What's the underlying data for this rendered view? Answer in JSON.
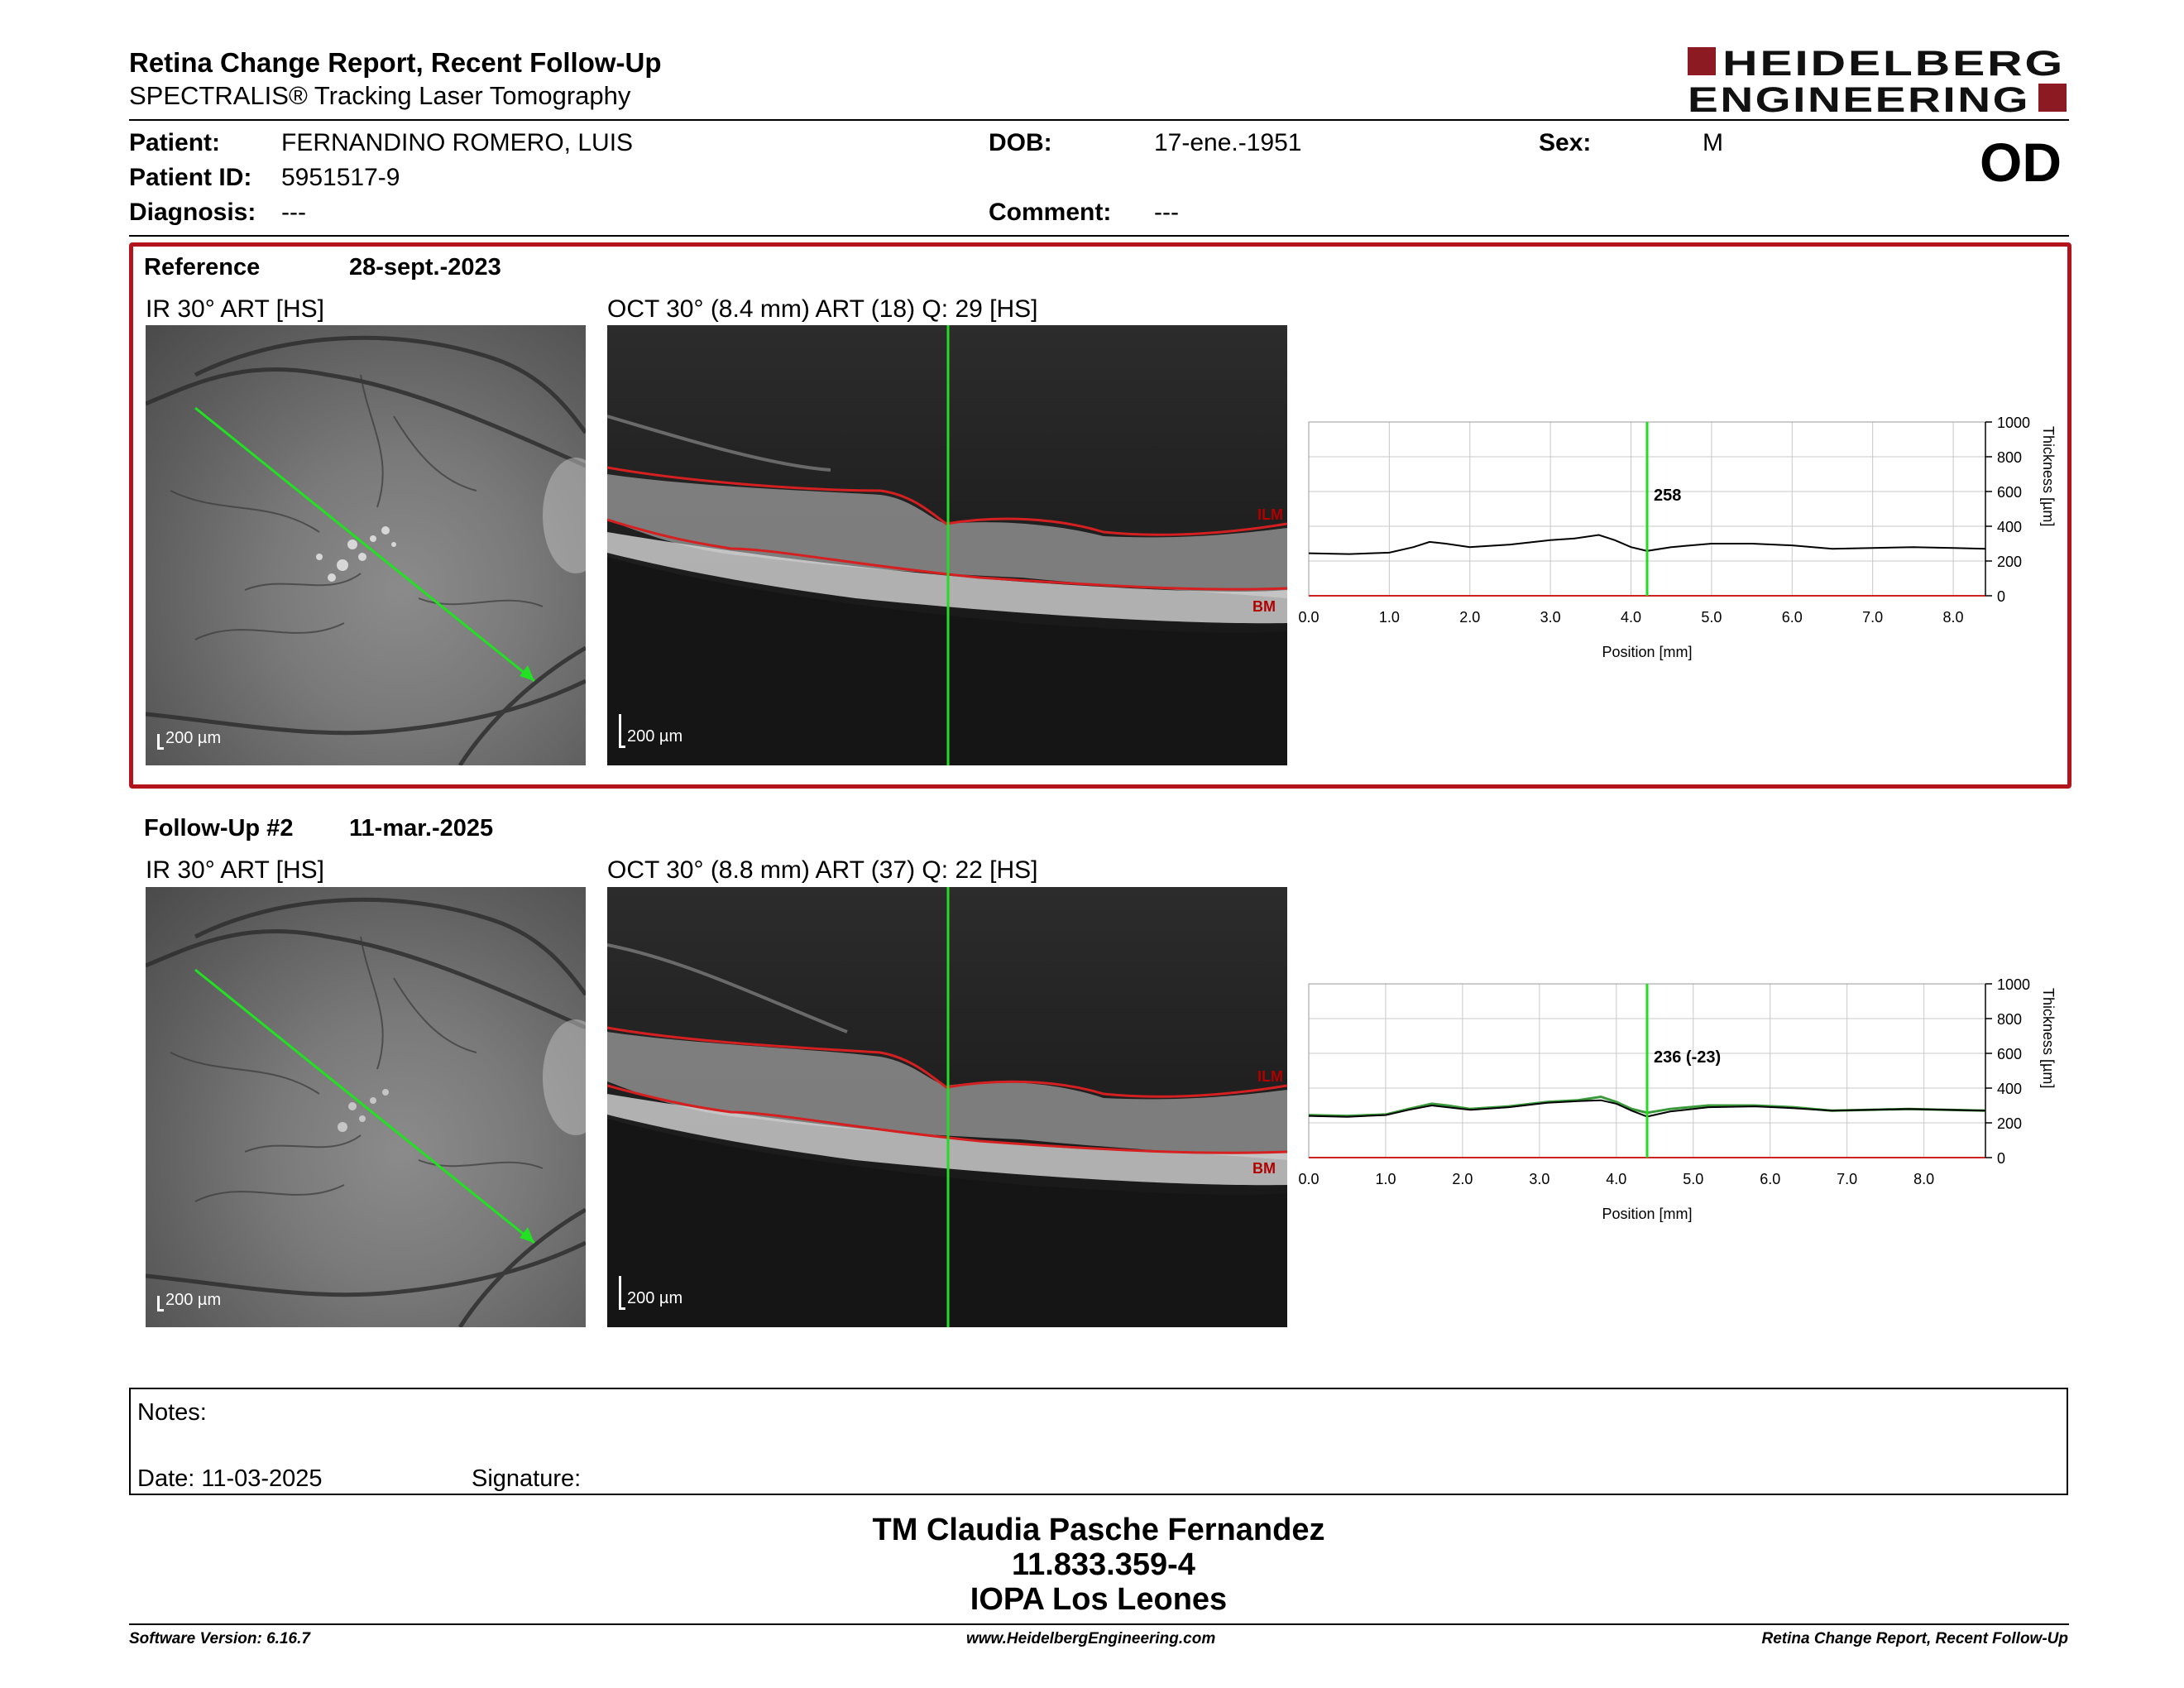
{
  "header": {
    "title": "Retina Change Report, Recent Follow-Up",
    "subtitle": "SPECTRALIS® Tracking Laser Tomography",
    "logo_line1": "HEIDELBERG",
    "logo_line2": "ENGINEERING",
    "eye": "OD"
  },
  "patient": {
    "patient_label": "Patient:",
    "patient_name": "FERNANDINO ROMERO, LUIS",
    "dob_label": "DOB:",
    "dob": "17-ene.-1951",
    "sex_label": "Sex:",
    "sex": "M",
    "id_label": "Patient ID:",
    "id": "5951517-9",
    "diagnosis_label": "Diagnosis:",
    "diagnosis": "---",
    "comment_label": "Comment:",
    "comment": "---"
  },
  "reference": {
    "label": "Reference",
    "date": "28-sept.-2023",
    "ir_title": "IR 30° ART [HS]",
    "oct_title": "OCT 30° (8.4 mm) ART (18) Q: 29 [HS]",
    "ir_scale": "200 µm",
    "oct_scale": "200 µm",
    "ilm_label": "ILM",
    "bm_label": "BM"
  },
  "followup": {
    "label": "Follow-Up #2",
    "date": "11-mar.-2025",
    "ir_title": "IR 30° ART [HS]",
    "oct_title": "OCT 30° (8.8 mm) ART (37) Q: 22 [HS]",
    "ir_scale": "200 µm",
    "oct_scale": "200 µm",
    "ilm_label": "ILM",
    "bm_label": "BM"
  },
  "chart_data": [
    {
      "type": "line",
      "xlabel": "Position [mm]",
      "ylabel": "Thickness [µm]",
      "xlim": [
        0,
        8.4
      ],
      "ylim": [
        0,
        1000
      ],
      "x_ticks": [
        "0.0",
        "1.0",
        "2.0",
        "3.0",
        "4.0",
        "5.0",
        "6.0",
        "7.0",
        "8.0"
      ],
      "y_ticks": [
        "0",
        "200",
        "400",
        "600",
        "800",
        "1000"
      ],
      "grid": true,
      "marker_x": 4.2,
      "marker_label": "258",
      "colors": {
        "line": "#000000",
        "marker": "#22dd22",
        "baseline": "#cc2222"
      },
      "series": [
        {
          "x": [
            0.0,
            0.5,
            1.0,
            1.3,
            1.5,
            1.7,
            2.0,
            2.5,
            3.0,
            3.3,
            3.6,
            3.8,
            4.0,
            4.2,
            4.5,
            5.0,
            5.5,
            6.0,
            6.5,
            7.0,
            7.5,
            8.0,
            8.4
          ],
          "values": [
            245,
            240,
            248,
            280,
            310,
            300,
            280,
            295,
            320,
            330,
            350,
            320,
            280,
            258,
            280,
            300,
            300,
            290,
            270,
            275,
            280,
            275,
            270
          ]
        }
      ]
    },
    {
      "type": "line",
      "xlabel": "Position [mm]",
      "ylabel": "Thickness [µm]",
      "xlim": [
        0,
        8.8
      ],
      "ylim": [
        0,
        1000
      ],
      "x_ticks": [
        "0.0",
        "1.0",
        "2.0",
        "3.0",
        "4.0",
        "5.0",
        "6.0",
        "7.0",
        "8.0"
      ],
      "y_ticks": [
        "0",
        "200",
        "400",
        "600",
        "800",
        "1000"
      ],
      "grid": true,
      "marker_x": 4.4,
      "marker_label": "236 (-23)",
      "colors": {
        "line": "#000000",
        "reference": "#3a9a3a",
        "marker": "#22dd22",
        "baseline": "#cc2222"
      },
      "series": [
        {
          "x": [
            0.0,
            0.5,
            1.0,
            1.3,
            1.6,
            1.8,
            2.1,
            2.6,
            3.1,
            3.5,
            3.8,
            4.0,
            4.2,
            4.4,
            4.7,
            5.2,
            5.8,
            6.3,
            6.8,
            7.3,
            7.8,
            8.3,
            8.8
          ],
          "values": [
            240,
            235,
            245,
            275,
            300,
            290,
            275,
            290,
            315,
            325,
            330,
            310,
            270,
            236,
            265,
            290,
            295,
            285,
            270,
            275,
            280,
            275,
            270
          ]
        },
        {
          "x": [
            0.0,
            0.5,
            1.0,
            1.3,
            1.6,
            1.8,
            2.1,
            2.6,
            3.1,
            3.5,
            3.8,
            4.0,
            4.2,
            4.4,
            4.7,
            5.2,
            5.8,
            6.3,
            6.8,
            7.3,
            7.8,
            8.3,
            8.8
          ],
          "values": [
            245,
            240,
            248,
            280,
            310,
            300,
            280,
            295,
            320,
            330,
            350,
            320,
            280,
            258,
            280,
            300,
            300,
            290,
            270,
            275,
            280,
            275,
            270
          ]
        }
      ]
    }
  ],
  "notes": {
    "notes_label": "Notes:",
    "date_label": "Date: 11-03-2025",
    "signature_label": "Signature:"
  },
  "signature": {
    "name": "TM Claudia Pasche Fernandez",
    "rut": "11.833.359-4",
    "institution": "IOPA Los Leones"
  },
  "footer": {
    "software": "Software Version: 6.16.7",
    "website": "www.HeidelbergEngineering.com",
    "report": "Retina Change Report, Recent Follow-Up"
  }
}
